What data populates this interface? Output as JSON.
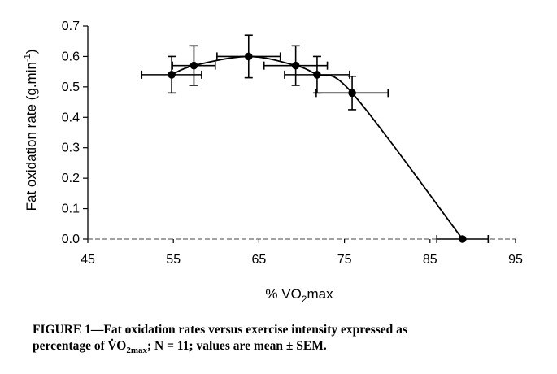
{
  "chart_data": {
    "type": "line",
    "xlabel": {
      "prefix": "% VO",
      "sub": "2",
      "suffix": "max"
    },
    "ylabel": {
      "prefix": "Fat oxidation rate (g.min",
      "sup": "-1",
      "suffix": ")"
    },
    "xlim": [
      45,
      95
    ],
    "ylim": [
      0.0,
      0.7
    ],
    "x_ticks": [
      "45",
      "55",
      "65",
      "75",
      "85",
      "95"
    ],
    "y_ticks": [
      "0.0",
      "0.1",
      "0.2",
      "0.3",
      "0.4",
      "0.5",
      "0.6",
      "0.7"
    ],
    "grid": false,
    "legend": "none",
    "series": [
      {
        "points": [
          {
            "x": 54.8,
            "y": 0.54,
            "x_err": 3.5,
            "y_err": 0.06
          },
          {
            "x": 57.4,
            "y": 0.57,
            "x_err": 2.5,
            "y_err": 0.065
          },
          {
            "x": 63.8,
            "y": 0.6,
            "x_err": 3.7,
            "y_err": 0.07
          },
          {
            "x": 69.3,
            "y": 0.57,
            "x_err": 3.7,
            "y_err": 0.065
          },
          {
            "x": 71.8,
            "y": 0.54,
            "x_err": 3.8,
            "y_err": 0.06
          },
          {
            "x": 75.9,
            "y": 0.48,
            "x_err": 4.2,
            "y_err": 0.055
          },
          {
            "x": 88.8,
            "y": 0.0,
            "x_err": 3.0,
            "y_err": 0.0
          }
        ]
      }
    ],
    "curve_style": "smooth",
    "line_color": "#000000",
    "marker_color": "#000000"
  },
  "caption": {
    "line1": "FIGURE 1—Fat oxidation rates versus exercise intensity expressed as",
    "line2_prefix": "percentage of V̇O",
    "line2_sub": "2max",
    "line2_suffix": "; N = 11; values are mean ± SEM."
  }
}
